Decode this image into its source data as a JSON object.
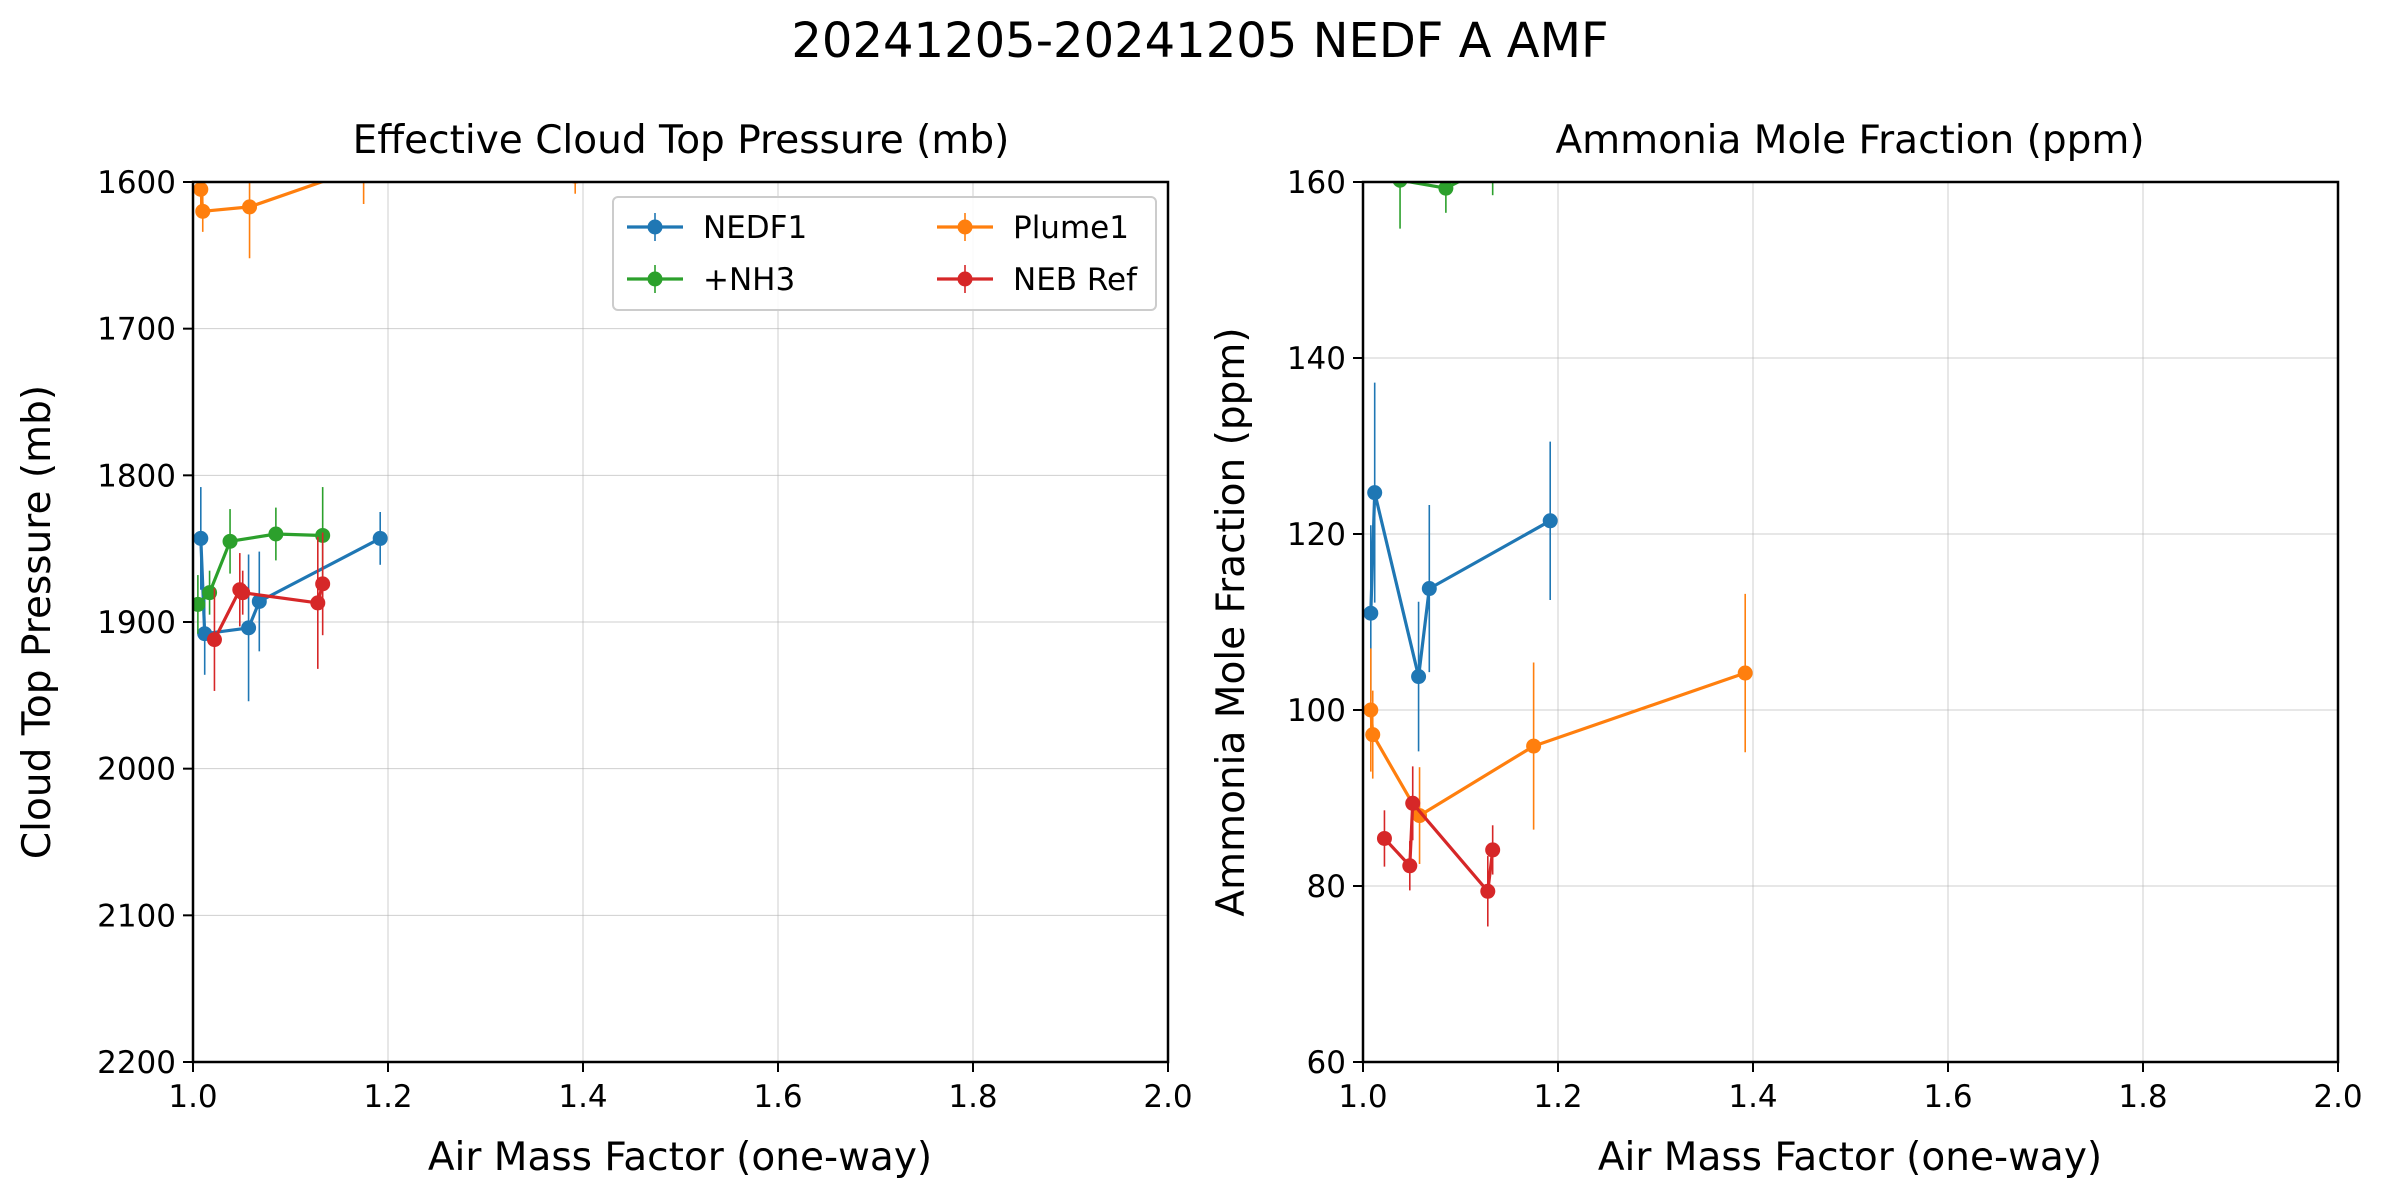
{
  "figure": {
    "title": "20241205-20241205 NEDF A AMF"
  },
  "colors": {
    "NEDF1": "#1f77b4",
    "Plume1": "#ff7f0e",
    "+NH3": "#2ca02c",
    "NEB Ref": "#d62728"
  },
  "chart_data": [
    {
      "type": "line",
      "title": "Effective Cloud Top Pressure (mb)",
      "xlabel": "Air Mass Factor (one-way)",
      "ylabel": "Cloud Top Pressure (mb)",
      "xlim": [
        1.0,
        2.0
      ],
      "ylim": [
        2200,
        1600
      ],
      "y_inverted": true,
      "xticks": [
        "1.0",
        "1.2",
        "1.4",
        "1.6",
        "1.8",
        "2.0"
      ],
      "yticks": [
        "1600",
        "1700",
        "1800",
        "1900",
        "2000",
        "2100",
        "2200"
      ],
      "grid": true,
      "legend": {
        "position": "top-right",
        "columns": 2
      },
      "series": [
        {
          "name": "NEDF1",
          "points": [
            {
              "x": 1.008,
              "y": 1843,
              "err": 35
            },
            {
              "x": 1.012,
              "y": 1908,
              "err": 28
            },
            {
              "x": 1.057,
              "y": 1904,
              "err": 50
            },
            {
              "x": 1.068,
              "y": 1886,
              "err": 34
            },
            {
              "x": 1.192,
              "y": 1843,
              "err": 18
            }
          ]
        },
        {
          "name": "Plume1",
          "points": [
            {
              "x": 1.008,
              "y": 1605,
              "err": 12
            },
            {
              "x": 1.01,
              "y": 1620,
              "err": 14
            },
            {
              "x": 1.058,
              "y": 1617,
              "err": 35
            },
            {
              "x": 1.175,
              "y": 1590,
              "err": 25
            },
            {
              "x": 1.392,
              "y": 1596,
              "err": 12
            }
          ]
        },
        {
          "name": "+NH3",
          "points": [
            {
              "x": 1.005,
              "y": 1888,
              "err": 20
            },
            {
              "x": 1.017,
              "y": 1880,
              "err": 15
            },
            {
              "x": 1.038,
              "y": 1845,
              "err": 22
            },
            {
              "x": 1.085,
              "y": 1840,
              "err": 18
            },
            {
              "x": 1.133,
              "y": 1841,
              "err": 33
            }
          ]
        },
        {
          "name": "NEB Ref",
          "points": [
            {
              "x": 1.022,
              "y": 1912,
              "err": 35
            },
            {
              "x": 1.048,
              "y": 1878,
              "err": 25
            },
            {
              "x": 1.051,
              "y": 1880,
              "err": 15
            },
            {
              "x": 1.128,
              "y": 1887,
              "err": 45
            },
            {
              "x": 1.133,
              "y": 1874,
              "err": 35
            }
          ]
        }
      ]
    },
    {
      "type": "line",
      "title": "Ammonia Mole Fraction (ppm)",
      "xlabel": "Air Mass Factor (one-way)",
      "ylabel": "Ammonia Mole Fraction (ppm)",
      "xlim": [
        1.0,
        2.0
      ],
      "ylim": [
        60,
        160
      ],
      "xticks": [
        "1.0",
        "1.2",
        "1.4",
        "1.6",
        "1.8",
        "2.0"
      ],
      "yticks": [
        "60",
        "80",
        "100",
        "120",
        "140",
        "160"
      ],
      "grid": true,
      "series": [
        {
          "name": "NEDF1",
          "points": [
            {
              "x": 1.008,
              "y": 111,
              "err": 10
            },
            {
              "x": 1.012,
              "y": 124.7,
              "err": 12.5
            },
            {
              "x": 1.057,
              "y": 103.8,
              "err": 8.5
            },
            {
              "x": 1.068,
              "y": 113.8,
              "err": 9.5
            },
            {
              "x": 1.192,
              "y": 121.5,
              "err": 9
            }
          ]
        },
        {
          "name": "Plume1",
          "points": [
            {
              "x": 1.008,
              "y": 100,
              "err": 7
            },
            {
              "x": 1.01,
              "y": 97.2,
              "err": 5
            },
            {
              "x": 1.058,
              "y": 88,
              "err": 5.5
            },
            {
              "x": 1.175,
              "y": 95.9,
              "err": 9.5
            },
            {
              "x": 1.392,
              "y": 104.2,
              "err": 9
            }
          ]
        },
        {
          "name": "+NH3",
          "points": [
            {
              "x": 1.038,
              "y": 160.2,
              "err": 5.5
            },
            {
              "x": 1.085,
              "y": 159.3,
              "err": 2.8
            },
            {
              "x": 1.133,
              "y": 162,
              "err": 3.5
            }
          ]
        },
        {
          "name": "NEB Ref",
          "points": [
            {
              "x": 1.022,
              "y": 85.4,
              "err": 3.2
            },
            {
              "x": 1.048,
              "y": 82.3,
              "err": 2.8
            },
            {
              "x": 1.051,
              "y": 89.4,
              "err": 4.2
            },
            {
              "x": 1.128,
              "y": 79.4,
              "err": 4
            },
            {
              "x": 1.133,
              "y": 84.1,
              "err": 2.8
            }
          ]
        }
      ]
    }
  ]
}
